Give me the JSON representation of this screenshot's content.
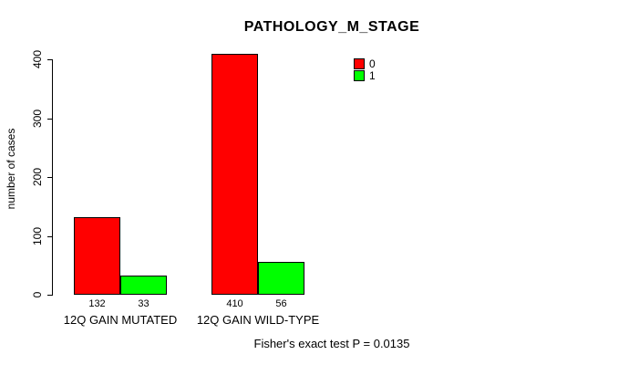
{
  "chart_data": {
    "type": "bar",
    "title": "PATHOLOGY_M_STAGE",
    "ylabel": "number of cases",
    "xlabel": "",
    "ylim": [
      0,
      400
    ],
    "yticks": [
      0,
      100,
      200,
      300,
      400
    ],
    "grid": false,
    "categories": [
      "12Q GAIN MUTATED",
      "12Q GAIN WILD-TYPE"
    ],
    "series": [
      {
        "name": "0",
        "color": "#ff0000",
        "values": [
          132,
          410
        ]
      },
      {
        "name": "1",
        "color": "#00ff00",
        "values": [
          33,
          56
        ]
      }
    ],
    "value_labels": [
      [
        "132",
        "33"
      ],
      [
        "410",
        "56"
      ]
    ],
    "legend": {
      "position": "top-right",
      "entries": [
        {
          "label": "0",
          "color": "#ff0000"
        },
        {
          "label": "1",
          "color": "#00ff00"
        }
      ]
    },
    "annotation": "Fisher's exact test P = 0.0135",
    "colors": {
      "background": "#ffffff",
      "text": "#000000",
      "bar_border": "#000000",
      "axis": "#000000"
    }
  }
}
